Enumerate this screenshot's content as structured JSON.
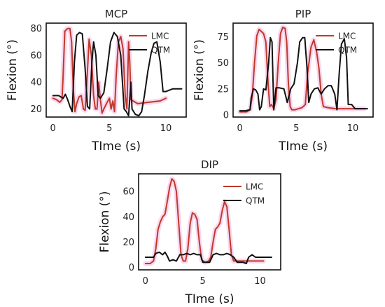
{
  "chart_data": [
    {
      "type": "line",
      "title": "MCP",
      "xlabel": "TIme (s)",
      "ylabel": "Flexion (°)",
      "xlim": [
        -0.6,
        11.8
      ],
      "ylim": [
        14,
        84
      ],
      "xticks": [
        0,
        5,
        10
      ],
      "yticks": [
        20,
        40,
        60,
        80
      ],
      "legend_position": "top-right",
      "series": [
        {
          "name": "LMC",
          "color": "#c0392b",
          "points": [
            [
              0,
              28
            ],
            [
              0.3,
              27
            ],
            [
              0.6,
              25
            ],
            [
              0.8,
              27
            ],
            [
              0.9,
              45
            ],
            [
              1.05,
              78
            ],
            [
              1.3,
              80
            ],
            [
              1.5,
              80
            ],
            [
              1.65,
              70
            ],
            [
              1.8,
              35
            ],
            [
              1.95,
              18
            ],
            [
              2.1,
              24
            ],
            [
              2.3,
              29
            ],
            [
              2.5,
              30
            ],
            [
              2.7,
              20
            ],
            [
              2.85,
              19
            ],
            [
              3.0,
              40
            ],
            [
              3.2,
              72
            ],
            [
              3.4,
              60
            ],
            [
              3.6,
              30
            ],
            [
              3.75,
              20
            ],
            [
              3.9,
              20
            ],
            [
              4.05,
              40
            ],
            [
              4.2,
              27
            ],
            [
              4.35,
              17
            ],
            [
              4.5,
              20
            ],
            [
              4.8,
              25
            ],
            [
              5.0,
              28
            ],
            [
              5.15,
              20
            ],
            [
              5.3,
              26
            ],
            [
              5.45,
              18
            ],
            [
              5.6,
              45
            ],
            [
              5.8,
              70
            ],
            [
              6.0,
              74
            ],
            [
              6.2,
              65
            ],
            [
              6.4,
              30
            ],
            [
              6.55,
              20
            ],
            [
              6.7,
              70
            ],
            [
              6.8,
              55
            ],
            [
              6.9,
              27
            ],
            [
              7.5,
              24
            ],
            [
              8.5,
              25
            ],
            [
              9.5,
              26
            ],
            [
              10.0,
              28
            ]
          ]
        },
        {
          "name": "QTM",
          "color": "#111111",
          "points": [
            [
              0,
              30
            ],
            [
              0.5,
              30
            ],
            [
              0.9,
              28
            ],
            [
              1.1,
              31
            ],
            [
              1.3,
              27
            ],
            [
              1.5,
              22
            ],
            [
              1.7,
              18
            ],
            [
              1.9,
              55
            ],
            [
              2.1,
              75
            ],
            [
              2.35,
              77
            ],
            [
              2.6,
              76
            ],
            [
              2.85,
              50
            ],
            [
              3.05,
              22
            ],
            [
              3.25,
              20
            ],
            [
              3.45,
              55
            ],
            [
              3.6,
              70
            ],
            [
              3.8,
              60
            ],
            [
              4.0,
              30
            ],
            [
              4.2,
              28
            ],
            [
              4.5,
              32
            ],
            [
              4.8,
              50
            ],
            [
              5.1,
              70
            ],
            [
              5.4,
              77
            ],
            [
              5.7,
              74
            ],
            [
              6.0,
              60
            ],
            [
              6.3,
              20
            ],
            [
              6.5,
              18
            ],
            [
              6.7,
              15
            ],
            [
              6.9,
              40
            ],
            [
              7.0,
              20
            ],
            [
              7.3,
              16
            ],
            [
              7.6,
              15
            ],
            [
              7.85,
              18
            ],
            [
              8.1,
              30
            ],
            [
              8.4,
              48
            ],
            [
              8.7,
              62
            ],
            [
              8.95,
              69
            ],
            [
              9.2,
              70
            ],
            [
              9.5,
              55
            ],
            [
              9.75,
              33
            ],
            [
              10.0,
              33
            ],
            [
              10.3,
              34
            ],
            [
              10.6,
              35
            ],
            [
              11.0,
              35
            ],
            [
              11.4,
              35
            ]
          ]
        }
      ]
    },
    {
      "type": "line",
      "title": "PIP",
      "xlabel": "TIme (s)",
      "ylabel": "Flexion (°)",
      "xlim": [
        -0.6,
        11.8
      ],
      "ylim": [
        -2,
        88
      ],
      "xticks": [
        0,
        5,
        10
      ],
      "yticks": [
        0,
        25,
        50,
        75
      ],
      "legend_position": "top-right",
      "series": [
        {
          "name": "LMC",
          "color": "#c0392b",
          "points": [
            [
              0,
              3
            ],
            [
              0.6,
              3
            ],
            [
              0.9,
              5
            ],
            [
              1.1,
              18
            ],
            [
              1.3,
              50
            ],
            [
              1.5,
              76
            ],
            [
              1.7,
              82
            ],
            [
              1.9,
              80
            ],
            [
              2.1,
              78
            ],
            [
              2.3,
              70
            ],
            [
              2.5,
              30
            ],
            [
              2.65,
              8
            ],
            [
              2.8,
              10
            ],
            [
              3.0,
              6
            ],
            [
              3.2,
              15
            ],
            [
              3.4,
              50
            ],
            [
              3.6,
              78
            ],
            [
              3.8,
              84
            ],
            [
              4.0,
              83
            ],
            [
              4.15,
              70
            ],
            [
              4.3,
              30
            ],
            [
              4.45,
              8
            ],
            [
              4.6,
              5
            ],
            [
              4.9,
              5
            ],
            [
              5.2,
              6
            ],
            [
              5.5,
              7
            ],
            [
              5.8,
              10
            ],
            [
              6.0,
              40
            ],
            [
              6.3,
              65
            ],
            [
              6.55,
              72
            ],
            [
              6.8,
              60
            ],
            [
              7.0,
              45
            ],
            [
              7.2,
              20
            ],
            [
              7.4,
              8
            ],
            [
              7.8,
              7
            ],
            [
              8.5,
              6
            ],
            [
              9.5,
              6
            ],
            [
              10.5,
              6
            ],
            [
              11.0,
              6
            ]
          ]
        },
        {
          "name": "QTM",
          "color": "#111111",
          "points": [
            [
              0,
              4
            ],
            [
              0.5,
              4
            ],
            [
              0.9,
              5
            ],
            [
              1.0,
              16
            ],
            [
              1.2,
              25
            ],
            [
              1.4,
              24
            ],
            [
              1.6,
              20
            ],
            [
              1.75,
              5
            ],
            [
              1.9,
              8
            ],
            [
              2.1,
              25
            ],
            [
              2.3,
              24
            ],
            [
              2.55,
              50
            ],
            [
              2.7,
              74
            ],
            [
              2.85,
              70
            ],
            [
              3.0,
              5
            ],
            [
              3.2,
              26
            ],
            [
              3.5,
              26
            ],
            [
              3.9,
              25
            ],
            [
              4.2,
              12
            ],
            [
              4.5,
              25
            ],
            [
              4.8,
              30
            ],
            [
              5.1,
              50
            ],
            [
              5.3,
              70
            ],
            [
              5.55,
              74
            ],
            [
              5.75,
              74
            ],
            [
              5.95,
              45
            ],
            [
              6.1,
              12
            ],
            [
              6.3,
              20
            ],
            [
              6.6,
              25
            ],
            [
              6.9,
              26
            ],
            [
              7.2,
              20
            ],
            [
              7.5,
              25
            ],
            [
              7.8,
              28
            ],
            [
              8.1,
              28
            ],
            [
              8.4,
              20
            ],
            [
              8.6,
              5
            ],
            [
              8.8,
              40
            ],
            [
              9.0,
              68
            ],
            [
              9.25,
              73
            ],
            [
              9.45,
              55
            ],
            [
              9.6,
              10
            ],
            [
              9.9,
              10
            ],
            [
              10.2,
              6
            ],
            [
              10.8,
              6
            ],
            [
              11.3,
              6
            ]
          ]
        }
      ]
    },
    {
      "type": "line",
      "title": "DIP",
      "xlabel": "TIme (s)",
      "ylabel": "Flexion (°)",
      "xlim": [
        -0.6,
        11.8
      ],
      "ylim": [
        -2,
        74
      ],
      "xticks": [
        0,
        5,
        10
      ],
      "yticks": [
        0,
        20,
        40,
        60
      ],
      "legend_position": "top-right",
      "series": [
        {
          "name": "LMC",
          "color": "#c0392b",
          "points": [
            [
              0,
              3
            ],
            [
              0.4,
              3
            ],
            [
              0.7,
              5
            ],
            [
              0.9,
              15
            ],
            [
              1.1,
              30
            ],
            [
              1.3,
              36
            ],
            [
              1.5,
              40
            ],
            [
              1.7,
              42
            ],
            [
              1.9,
              52
            ],
            [
              2.1,
              63
            ],
            [
              2.3,
              70
            ],
            [
              2.5,
              68
            ],
            [
              2.7,
              60
            ],
            [
              2.9,
              35
            ],
            [
              3.1,
              10
            ],
            [
              3.3,
              5
            ],
            [
              3.5,
              5
            ],
            [
              3.7,
              15
            ],
            [
              3.9,
              35
            ],
            [
              4.1,
              43
            ],
            [
              4.3,
              42
            ],
            [
              4.5,
              38
            ],
            [
              4.7,
              20
            ],
            [
              4.9,
              6
            ],
            [
              5.2,
              4
            ],
            [
              5.5,
              5
            ],
            [
              5.7,
              8
            ],
            [
              5.9,
              20
            ],
            [
              6.1,
              30
            ],
            [
              6.3,
              32
            ],
            [
              6.5,
              35
            ],
            [
              6.7,
              45
            ],
            [
              6.9,
              52
            ],
            [
              7.1,
              48
            ],
            [
              7.3,
              30
            ],
            [
              7.5,
              10
            ],
            [
              7.7,
              5
            ],
            [
              8.5,
              5
            ],
            [
              9.5,
              5
            ],
            [
              10.3,
              5
            ]
          ]
        },
        {
          "name": "QTM",
          "color": "#111111",
          "points": [
            [
              0,
              8
            ],
            [
              0.4,
              8
            ],
            [
              0.7,
              8
            ],
            [
              0.9,
              11
            ],
            [
              1.2,
              12
            ],
            [
              1.5,
              10
            ],
            [
              1.7,
              12
            ],
            [
              1.9,
              9
            ],
            [
              2.1,
              5
            ],
            [
              2.4,
              6
            ],
            [
              2.7,
              5
            ],
            [
              3.0,
              10
            ],
            [
              3.3,
              10
            ],
            [
              3.6,
              11
            ],
            [
              3.9,
              10
            ],
            [
              4.2,
              11
            ],
            [
              4.5,
              10
            ],
            [
              4.8,
              10
            ],
            [
              5.0,
              4
            ],
            [
              5.3,
              4
            ],
            [
              5.6,
              4
            ],
            [
              5.9,
              10
            ],
            [
              6.2,
              11
            ],
            [
              6.5,
              10
            ],
            [
              6.8,
              10
            ],
            [
              7.1,
              11
            ],
            [
              7.4,
              10
            ],
            [
              7.7,
              8
            ],
            [
              8.0,
              4
            ],
            [
              8.5,
              4
            ],
            [
              8.8,
              3
            ],
            [
              9.0,
              8
            ],
            [
              9.3,
              10
            ],
            [
              9.6,
              8
            ],
            [
              10.0,
              8
            ],
            [
              10.5,
              8
            ],
            [
              11.0,
              8
            ]
          ]
        }
      ]
    }
  ]
}
